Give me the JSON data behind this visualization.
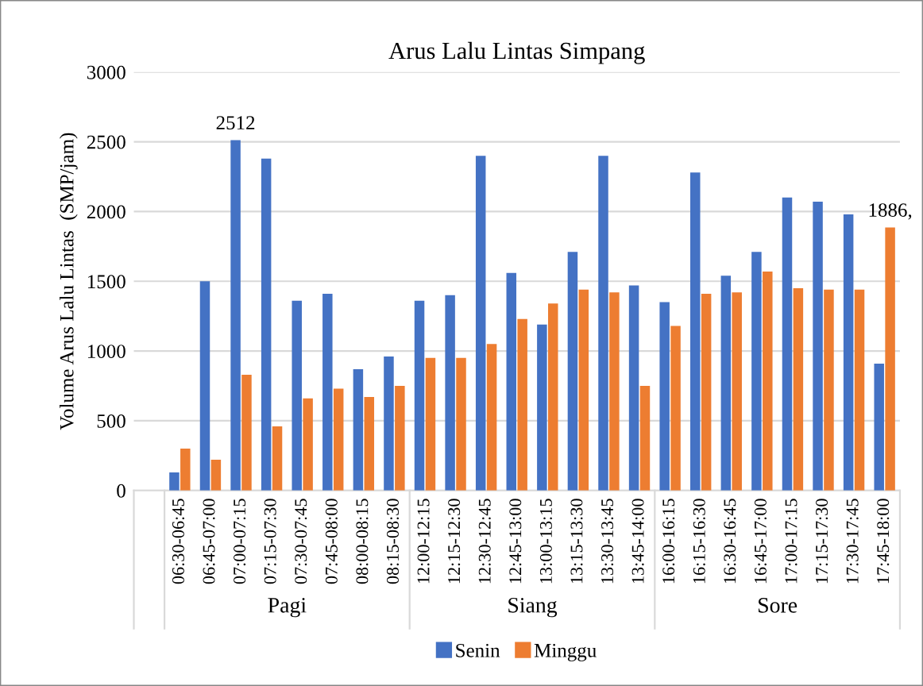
{
  "chart_data": {
    "type": "bar",
    "title": "Arus Lalu Lintas Simpang",
    "ylabel": "Volume Arus Lalu Lintas  (SMP/jam)",
    "categories": [
      null,
      "06:30-06:45",
      "06:45-07:00",
      "07:00-07:15",
      "07:15-07:30",
      "07:30-07:45",
      "07:45-08:00",
      "08:00-08:15",
      "08:15-08:30",
      "12:00-12:15",
      "12:15-12:30",
      "12:30-12:45",
      "12:45-13:00",
      "13:00-13:15",
      "13:15-13:30",
      "13:30-13:45",
      "13:45-14:00",
      "16:00-16:15",
      "16:15-16:30",
      "16:30-16:45",
      "16:45-17:00",
      "17:00-17:15",
      "17:15-17:30",
      "17:30-17:45",
      "17:45-18:00"
    ],
    "series": [
      {
        "name": "Senin",
        "color": "#4472c4",
        "values": [
          null,
          130,
          1500,
          2512,
          2380,
          1360,
          1410,
          870,
          960,
          1360,
          1400,
          2400,
          1560,
          1190,
          1710,
          2400,
          1470,
          1350,
          2280,
          1540,
          1710,
          2100,
          2070,
          1980,
          910
        ],
        "value_labels": [
          null,
          null,
          null,
          "2512",
          null,
          null,
          null,
          null,
          null,
          null,
          null,
          null,
          null,
          null,
          null,
          null,
          null,
          null,
          null,
          null,
          null,
          null,
          null,
          null,
          null
        ]
      },
      {
        "name": "Minggu",
        "color": "#ed7d31",
        "values": [
          null,
          300,
          220,
          830,
          460,
          660,
          730,
          670,
          750,
          950,
          950,
          1050,
          1230,
          1340,
          1440,
          1420,
          750,
          1180,
          1410,
          1420,
          1570,
          1450,
          1440,
          1440,
          1886
        ],
        "value_labels": [
          null,
          null,
          null,
          null,
          null,
          null,
          null,
          null,
          null,
          null,
          null,
          null,
          null,
          null,
          null,
          null,
          null,
          null,
          null,
          null,
          null,
          null,
          null,
          null,
          "1886,"
        ]
      }
    ],
    "annotations": [
      "Pagi",
      "Siang",
      "Sore"
    ],
    "ylim": [
      0,
      3000
    ],
    "yticks": [
      0,
      500,
      1000,
      1500,
      2000,
      2500,
      3000
    ],
    "grid": "y",
    "legend": "bottom"
  }
}
